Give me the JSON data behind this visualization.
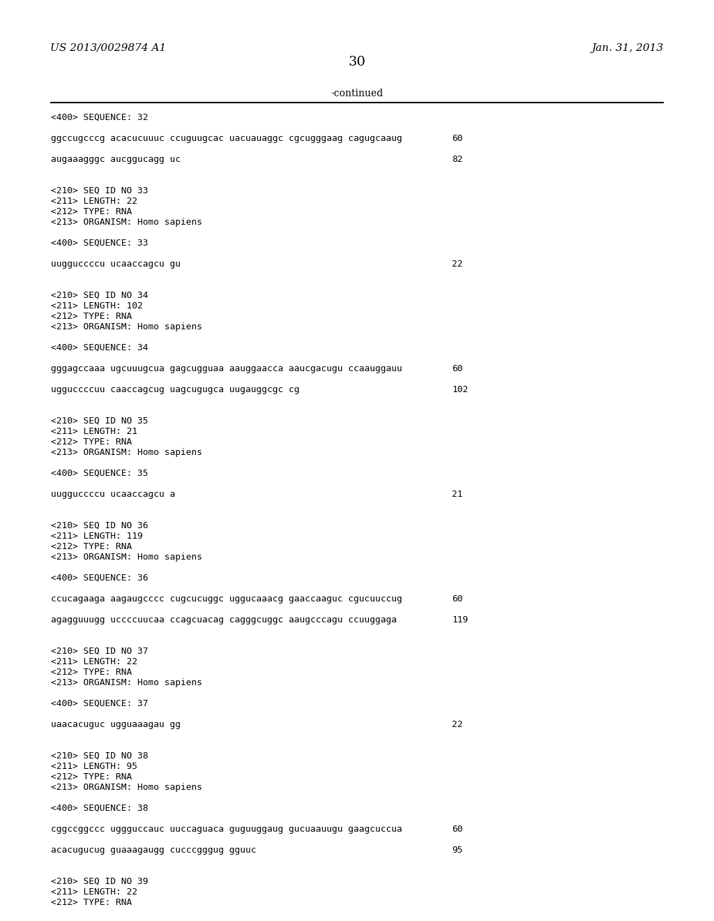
{
  "background_color": "#ffffff",
  "text_color": "#000000",
  "header_left": "US 2013/0029874 A1",
  "header_right": "Jan. 31, 2013",
  "page_number": "30",
  "continued": "-continued",
  "content_lines": [
    {
      "t": "<400> SEQUENCE: 32",
      "num": null
    },
    {
      "t": null,
      "num": null
    },
    {
      "t": "ggccugcccg acacucuuuc ccuguugcac uacuauaggc cgcugggaag cagugcaaug",
      "num": "60"
    },
    {
      "t": null,
      "num": null
    },
    {
      "t": "augaaagggc aucggucagg uc",
      "num": "82"
    },
    {
      "t": null,
      "num": null
    },
    {
      "t": null,
      "num": null
    },
    {
      "t": "<210> SEQ ID NO 33",
      "num": null
    },
    {
      "t": "<211> LENGTH: 22",
      "num": null
    },
    {
      "t": "<212> TYPE: RNA",
      "num": null
    },
    {
      "t": "<213> ORGANISM: Homo sapiens",
      "num": null
    },
    {
      "t": null,
      "num": null
    },
    {
      "t": "<400> SEQUENCE: 33",
      "num": null
    },
    {
      "t": null,
      "num": null
    },
    {
      "t": "uugguccccu ucaaccagcu gu",
      "num": "22"
    },
    {
      "t": null,
      "num": null
    },
    {
      "t": null,
      "num": null
    },
    {
      "t": "<210> SEQ ID NO 34",
      "num": null
    },
    {
      "t": "<211> LENGTH: 102",
      "num": null
    },
    {
      "t": "<212> TYPE: RNA",
      "num": null
    },
    {
      "t": "<213> ORGANISM: Homo sapiens",
      "num": null
    },
    {
      "t": null,
      "num": null
    },
    {
      "t": "<400> SEQUENCE: 34",
      "num": null
    },
    {
      "t": null,
      "num": null
    },
    {
      "t": "gggagccaaa ugcuuugcua gagcugguaa aauggaacca aaucgacugu ccaauggauu",
      "num": "60"
    },
    {
      "t": null,
      "num": null
    },
    {
      "t": "ugguccccuu caaccagcug uagcugugca uugauggcgc cg",
      "num": "102"
    },
    {
      "t": null,
      "num": null
    },
    {
      "t": null,
      "num": null
    },
    {
      "t": "<210> SEQ ID NO 35",
      "num": null
    },
    {
      "t": "<211> LENGTH: 21",
      "num": null
    },
    {
      "t": "<212> TYPE: RNA",
      "num": null
    },
    {
      "t": "<213> ORGANISM: Homo sapiens",
      "num": null
    },
    {
      "t": null,
      "num": null
    },
    {
      "t": "<400> SEQUENCE: 35",
      "num": null
    },
    {
      "t": null,
      "num": null
    },
    {
      "t": "uugguccccu ucaaccagcu a",
      "num": "21"
    },
    {
      "t": null,
      "num": null
    },
    {
      "t": null,
      "num": null
    },
    {
      "t": "<210> SEQ ID NO 36",
      "num": null
    },
    {
      "t": "<211> LENGTH: 119",
      "num": null
    },
    {
      "t": "<212> TYPE: RNA",
      "num": null
    },
    {
      "t": "<213> ORGANISM: Homo sapiens",
      "num": null
    },
    {
      "t": null,
      "num": null
    },
    {
      "t": "<400> SEQUENCE: 36",
      "num": null
    },
    {
      "t": null,
      "num": null
    },
    {
      "t": "ccucagaaga aagaugcccc cugcucuggc uggucaaacg gaaccaaguc cgucuuccug",
      "num": "60"
    },
    {
      "t": null,
      "num": null
    },
    {
      "t": "agagguuugg uccccuucaa ccagcuacag cagggcuggc aaugcccagu ccuuggaga",
      "num": "119"
    },
    {
      "t": null,
      "num": null
    },
    {
      "t": null,
      "num": null
    },
    {
      "t": "<210> SEQ ID NO 37",
      "num": null
    },
    {
      "t": "<211> LENGTH: 22",
      "num": null
    },
    {
      "t": "<212> TYPE: RNA",
      "num": null
    },
    {
      "t": "<213> ORGANISM: Homo sapiens",
      "num": null
    },
    {
      "t": null,
      "num": null
    },
    {
      "t": "<400> SEQUENCE: 37",
      "num": null
    },
    {
      "t": null,
      "num": null
    },
    {
      "t": "uaacacuguc ugguaaagau gg",
      "num": "22"
    },
    {
      "t": null,
      "num": null
    },
    {
      "t": null,
      "num": null
    },
    {
      "t": "<210> SEQ ID NO 38",
      "num": null
    },
    {
      "t": "<211> LENGTH: 95",
      "num": null
    },
    {
      "t": "<212> TYPE: RNA",
      "num": null
    },
    {
      "t": "<213> ORGANISM: Homo sapiens",
      "num": null
    },
    {
      "t": null,
      "num": null
    },
    {
      "t": "<400> SEQUENCE: 38",
      "num": null
    },
    {
      "t": null,
      "num": null
    },
    {
      "t": "cggccggccc uggguccauc uuccaguaca guguuggaug gucuaauugu gaagcuccua",
      "num": "60"
    },
    {
      "t": null,
      "num": null
    },
    {
      "t": "acacugucug guaaagaugg cucccgggug gguuc",
      "num": "95"
    },
    {
      "t": null,
      "num": null
    },
    {
      "t": null,
      "num": null
    },
    {
      "t": "<210> SEQ ID NO 39",
      "num": null
    },
    {
      "t": "<211> LENGTH: 22",
      "num": null
    },
    {
      "t": "<212> TYPE: RNA",
      "num": null
    }
  ]
}
